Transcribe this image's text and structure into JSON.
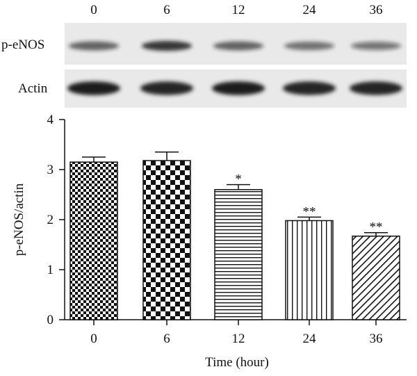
{
  "blot": {
    "lane_labels": [
      "0",
      "6",
      "12",
      "24",
      "36"
    ],
    "rows": [
      {
        "label": "p-eNOS",
        "intensity": [
          0.55,
          0.8,
          0.55,
          0.45,
          0.4
        ]
      },
      {
        "label": "Actin",
        "intensity": [
          1.0,
          0.95,
          1.0,
          0.95,
          0.95
        ]
      }
    ]
  },
  "chart_data": {
    "type": "bar",
    "categories": [
      "0",
      "6",
      "12",
      "24",
      "36"
    ],
    "values": [
      3.15,
      3.18,
      2.6,
      1.98,
      1.67
    ],
    "errors": [
      0.1,
      0.17,
      0.1,
      0.07,
      0.07
    ],
    "significance": [
      "",
      "",
      "*",
      "**",
      "**"
    ],
    "patterns": [
      "fine-checker",
      "coarse-checker",
      "horizontal-lines",
      "vertical-lines",
      "diagonal-lines"
    ],
    "xlabel": "Time (hour)",
    "ylabel": "p-eNOS/actin",
    "ylim": [
      0,
      4
    ],
    "yticks": [
      "0",
      "1",
      "2",
      "3",
      "4"
    ],
    "colors": {
      "ink": "#111111",
      "band": "#1a1a1a",
      "blot_bg": "#e9e9e9"
    }
  }
}
